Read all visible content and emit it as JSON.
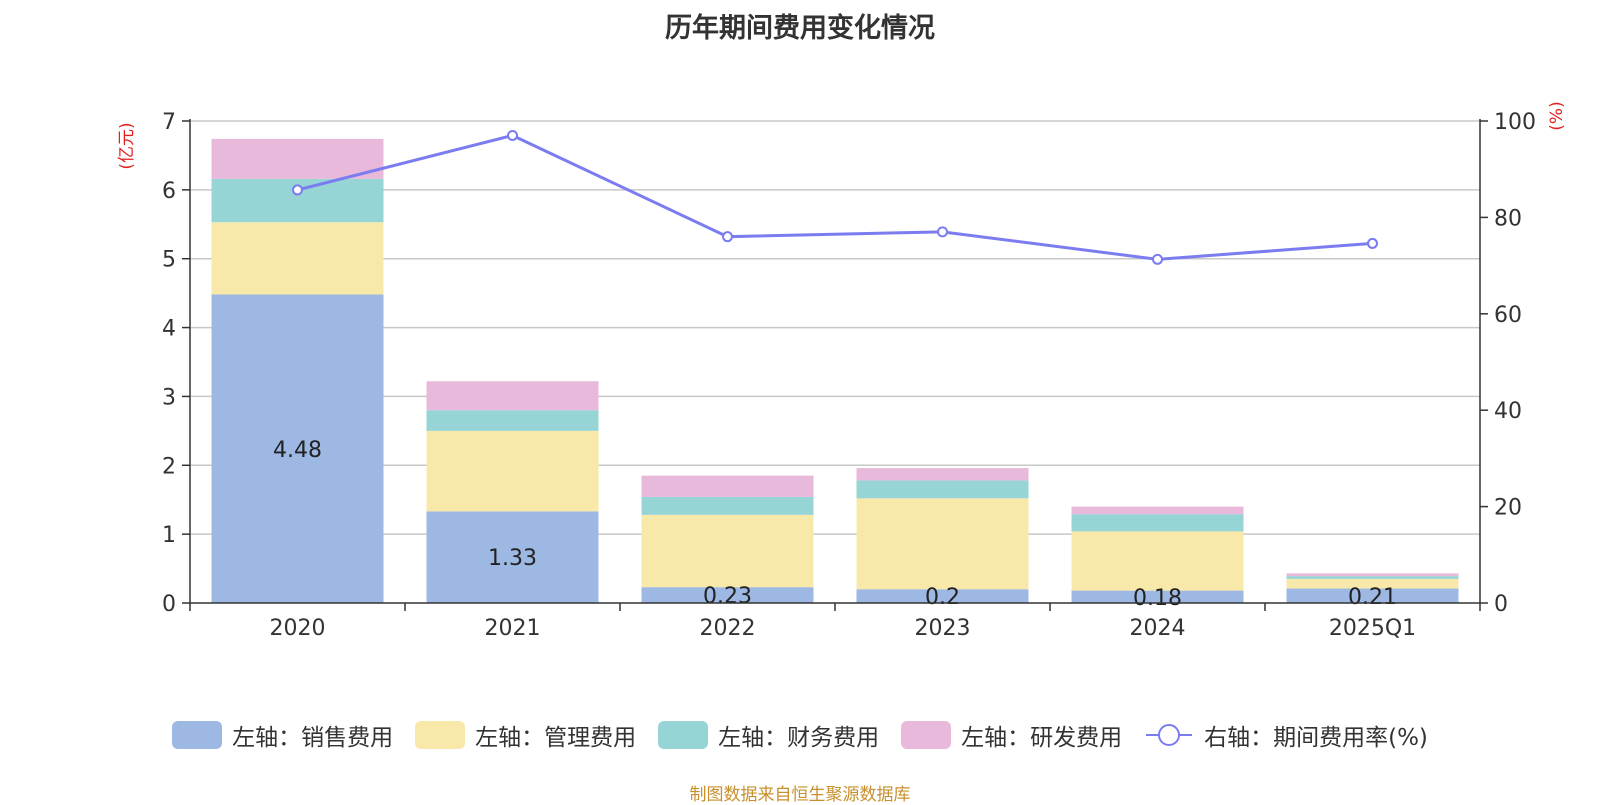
{
  "chart_data": {
    "type": "bar",
    "title": "历年期间费用变化情况",
    "categories": [
      "2020",
      "2021",
      "2022",
      "2023",
      "2024",
      "2025Q1"
    ],
    "y_left": {
      "label": "(亿元)",
      "min": 0,
      "max": 7,
      "ticks": [
        0,
        1,
        2,
        3,
        4,
        5,
        6,
        7
      ]
    },
    "y_right": {
      "label": "(%)",
      "min": 0,
      "max": 100,
      "ticks": [
        0,
        20,
        40,
        60,
        80,
        100
      ]
    },
    "grid": true,
    "legend_position": "bottom",
    "series": [
      {
        "name": "左轴：销售费用",
        "type": "bar",
        "stack": "total",
        "color": "#9db8e3",
        "values": [
          4.48,
          1.33,
          0.23,
          0.2,
          0.18,
          0.21
        ],
        "data_labels": [
          "4.48",
          "1.33",
          "0.23",
          "0.2",
          "0.18",
          "0.21"
        ]
      },
      {
        "name": "左轴：管理费用",
        "type": "bar",
        "stack": "total",
        "color": "#f8e8aa",
        "values": [
          1.05,
          1.17,
          1.05,
          1.32,
          0.86,
          0.14
        ]
      },
      {
        "name": "左轴：财务费用",
        "type": "bar",
        "stack": "total",
        "color": "#96d4d6",
        "values": [
          0.63,
          0.3,
          0.26,
          0.26,
          0.25,
          0.04
        ]
      },
      {
        "name": "左轴：研发费用",
        "type": "bar",
        "stack": "total",
        "color": "#e8b9db",
        "values": [
          0.58,
          0.42,
          0.31,
          0.18,
          0.11,
          0.04
        ]
      },
      {
        "name": "右轴：期间费用率(%)",
        "type": "line",
        "axis": "right",
        "color": "#7b7cf0",
        "values": [
          85.7,
          97,
          76,
          77,
          71.3,
          74.6
        ]
      }
    ]
  },
  "source": "制图数据来自恒生聚源数据库"
}
